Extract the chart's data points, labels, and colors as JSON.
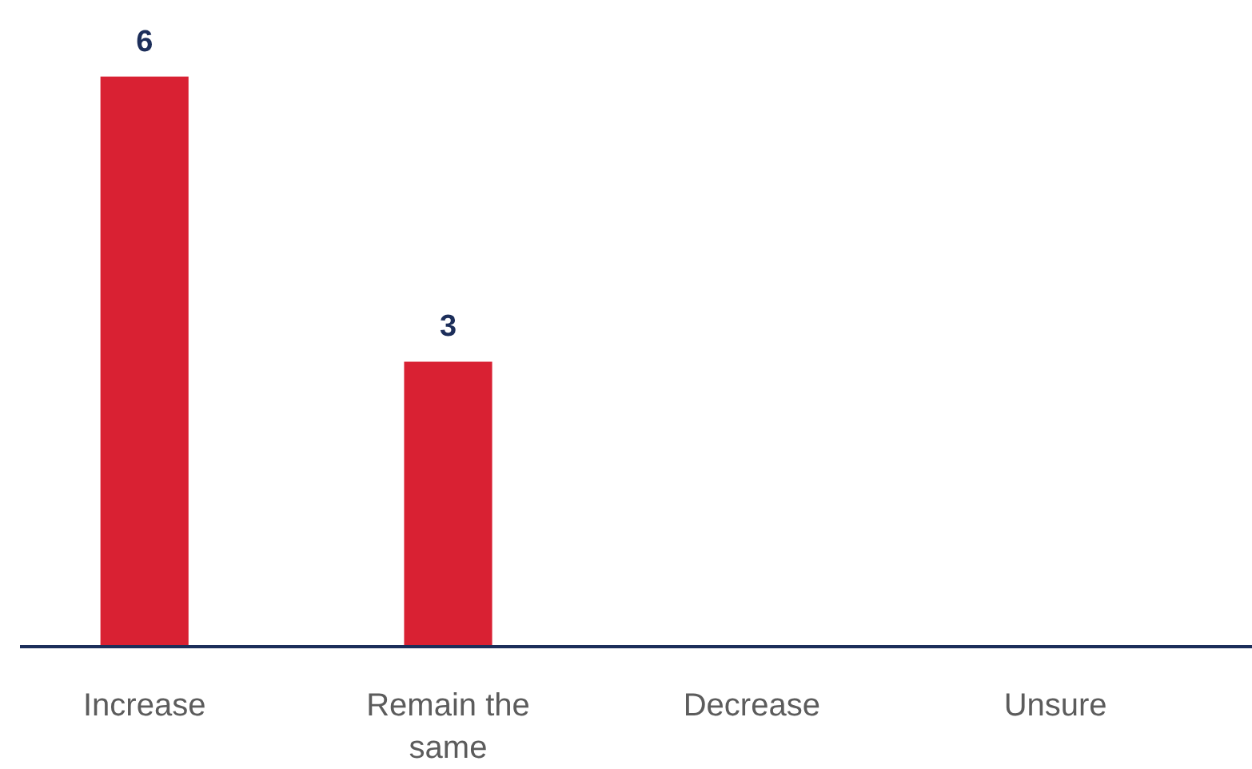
{
  "chart_data": {
    "type": "bar",
    "categories": [
      "Increase",
      "Remain the same",
      "Decrease",
      "Unsure"
    ],
    "values": [
      6,
      3,
      0,
      0
    ],
    "value_labels": [
      "6",
      "3",
      null,
      null
    ],
    "color": "#d92133"
  }
}
